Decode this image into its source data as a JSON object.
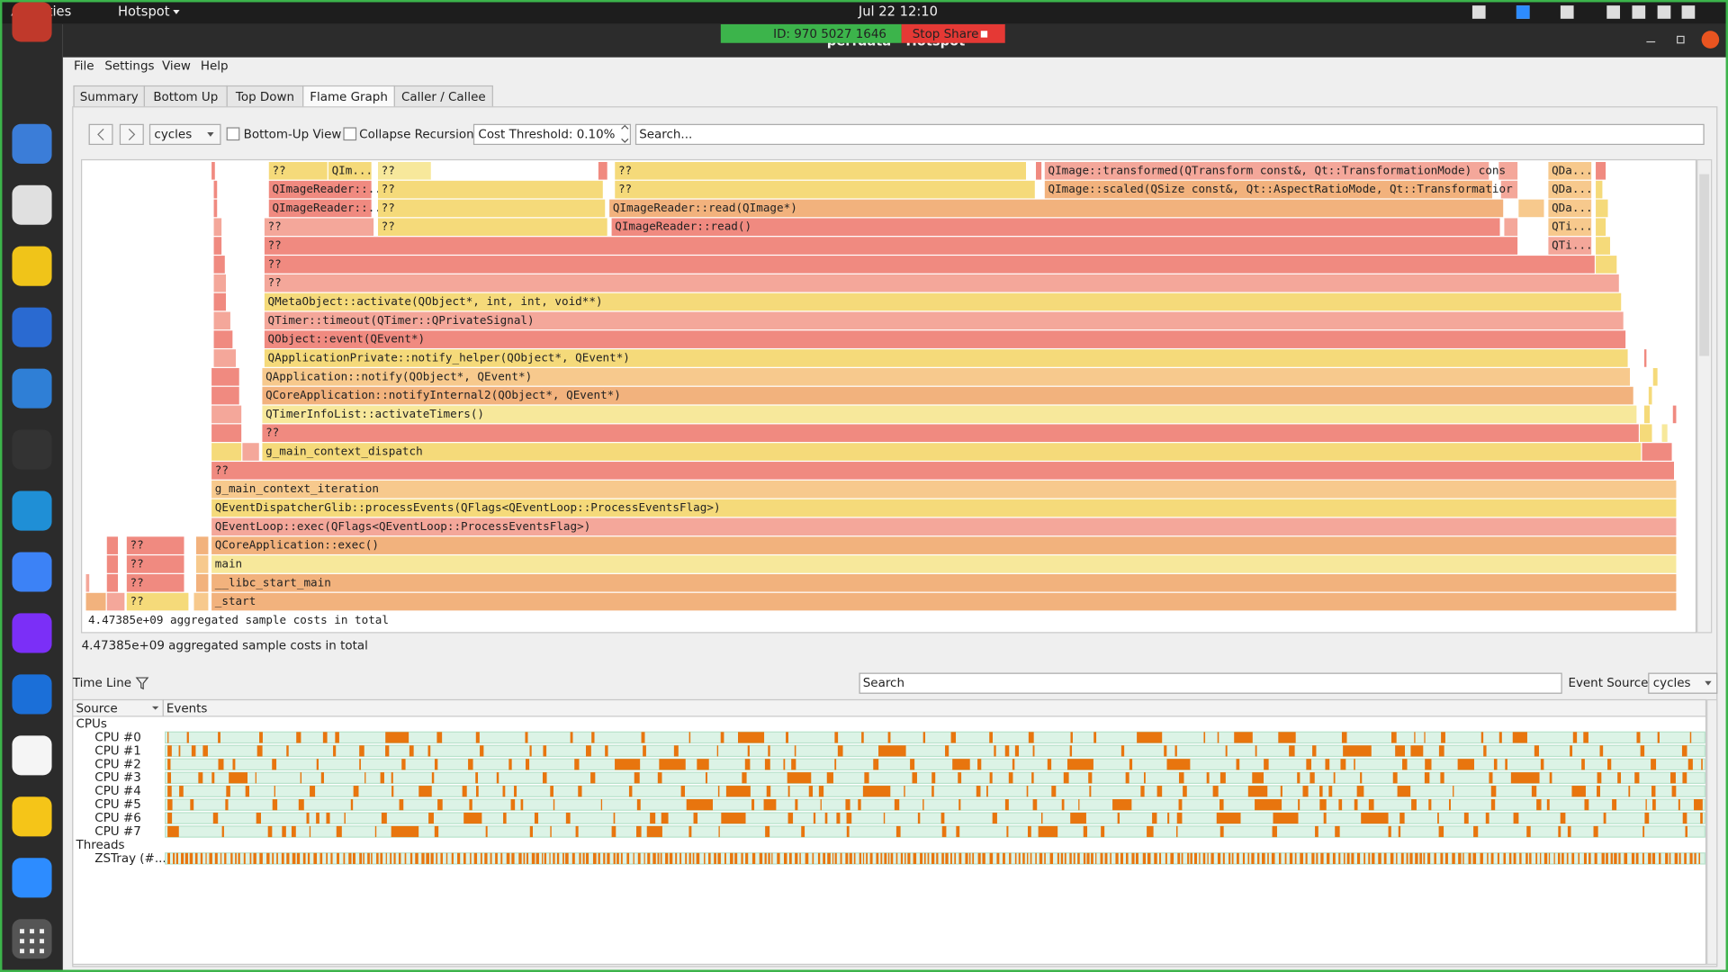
{
  "topbar": {
    "activities": "Activities",
    "app": "Hotspot",
    "clock": "Jul 22  12:10"
  },
  "share": {
    "id": "ID: 970 5027 1646",
    "stop": "Stop Share"
  },
  "window_title": "perfdata - Hotspot",
  "menu": [
    "File",
    "Settings",
    "View",
    "Help"
  ],
  "tabs": [
    "Summary",
    "Bottom Up",
    "Top Down",
    "Flame Graph",
    "Caller / Callee"
  ],
  "toolbar": {
    "cost_type": "cycles",
    "bottom_up": "Bottom-Up View",
    "collapse": "Collapse Recursion",
    "threshold": "Cost Threshold: 0.10%",
    "search": "Search..."
  },
  "flame": {
    "rows": [
      [
        "??",
        "_start"
      ],
      [
        "??",
        "__libc_start_main"
      ],
      [
        "??",
        "main"
      ],
      [
        "??",
        "QCoreApplication::exec()"
      ],
      [
        "QEventLoop::exec(QFlags<QEventLoop::ProcessEventsFlag>)"
      ],
      [
        "QEventDispatcherGlib::processEvents(QFlags<QEventLoop::ProcessEventsFlag>)"
      ],
      [
        "g_main_context_iteration"
      ],
      [
        "??"
      ],
      [
        "g_main_context_dispatch"
      ],
      [
        "??"
      ],
      [
        "QTimerInfoList::activateTimers()"
      ],
      [
        "QCoreApplication::notifyInternal2(QObject*, QEvent*)"
      ],
      [
        "QApplication::notify(QObject*, QEvent*)"
      ],
      [
        "QApplicationPrivate::notify_helper(QObject*, QEvent*)"
      ],
      [
        "QObject::event(QEvent*)"
      ],
      [
        "QTimer::timeout(QTimer::QPrivateSignal)"
      ],
      [
        "QMetaObject::activate(QObject*, int, int, void**)"
      ],
      [
        "??"
      ],
      [
        "??"
      ],
      [
        "??",
        "QTi..."
      ],
      [
        "??",
        "??",
        "QImageReader::read()",
        "QTi..."
      ],
      [
        "QImageReader::...",
        "??",
        "QImageReader::read(QImage*)",
        "QDa..."
      ],
      [
        "QImageReader::...",
        "??",
        "??",
        "QImage::scaled(QSize const&, Qt::AspectRatioMode, Qt::Transformatior",
        "QDa..."
      ],
      [
        "??",
        "QIm...",
        "??",
        "??",
        "QImage::transformed(QTransform const&, Qt::TransformationMode) cons",
        "QDa..."
      ]
    ],
    "status": "4.47385e+09 aggregated sample costs in total"
  },
  "status": "4.47385e+09 aggregated sample costs in total",
  "timeline": {
    "title": "Time Line",
    "search": "Search",
    "event_source_label": "Event Source:",
    "event_source": "cycles",
    "columns": [
      "Source",
      "Events"
    ],
    "groups": [
      {
        "name": "CPUs",
        "items": [
          "CPU #0",
          "CPU #1",
          "CPU #2",
          "CPU #3",
          "CPU #4",
          "CPU #5",
          "CPU #6",
          "CPU #7"
        ]
      },
      {
        "name": "Threads",
        "items": [
          "ZSTray (#..."
        ]
      }
    ]
  }
}
